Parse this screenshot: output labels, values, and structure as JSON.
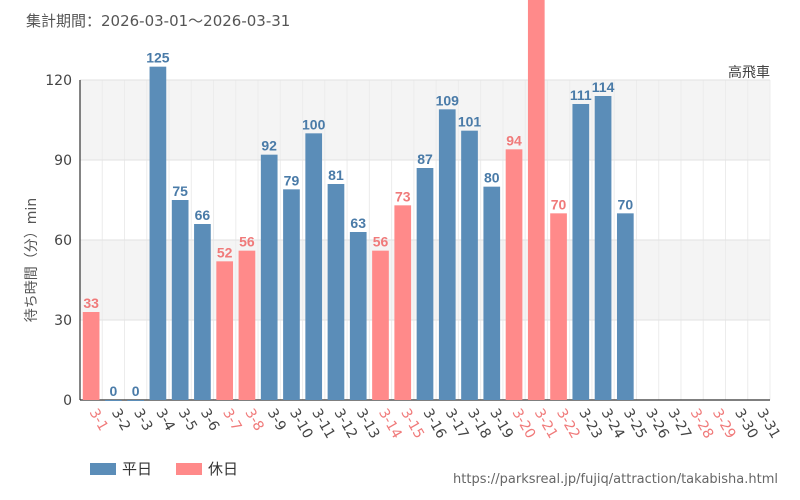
{
  "period_label": "集計期間：2026-03-01～2026-03-31",
  "attraction_name": "高飛車",
  "source_url": "https://parksreal.jp/fujiq/attraction/takabisha.html",
  "legend": {
    "weekday": "平日",
    "holiday": "休日"
  },
  "colors": {
    "weekday": "#5b8db8",
    "holiday": "#ff8a8a",
    "weekday_text": "#4a7ba8",
    "holiday_text": "#f07a7a"
  },
  "chart_data": {
    "type": "bar",
    "title": "",
    "ylabel": "待ち時間（分）min",
    "xlabel": "",
    "ylim": [
      0,
      120
    ],
    "yticks": [
      0,
      30,
      60,
      90,
      120
    ],
    "categories": [
      "3-1",
      "3-2",
      "3-3",
      "3-4",
      "3-5",
      "3-6",
      "3-7",
      "3-8",
      "3-9",
      "3-10",
      "3-11",
      "3-12",
      "3-13",
      "3-14",
      "3-15",
      "3-16",
      "3-17",
      "3-18",
      "3-19",
      "3-20",
      "3-21",
      "3-22",
      "3-23",
      "3-24",
      "3-25",
      "3-26",
      "3-27",
      "3-28",
      "3-29",
      "3-30",
      "3-31"
    ],
    "values": [
      33,
      0,
      0,
      125,
      75,
      66,
      52,
      56,
      92,
      79,
      100,
      81,
      63,
      56,
      73,
      87,
      109,
      101,
      80,
      94,
      null,
      70,
      111,
      114,
      70,
      null,
      null,
      null,
      null,
      null,
      null
    ],
    "labels": [
      "33",
      "0",
      "0",
      "125",
      "75",
      "66",
      "52",
      "56",
      "92",
      "79",
      "100",
      "81",
      "63",
      "56",
      "73",
      "87",
      "109",
      "101",
      "80",
      "94",
      "",
      "70",
      "111",
      "114",
      "70",
      "",
      "",
      "",
      "",
      "",
      ""
    ],
    "day_type": [
      "holiday",
      "weekday",
      "weekday",
      "weekday",
      "weekday",
      "weekday",
      "holiday",
      "holiday",
      "weekday",
      "weekday",
      "weekday",
      "weekday",
      "weekday",
      "holiday",
      "holiday",
      "weekday",
      "weekday",
      "weekday",
      "weekday",
      "holiday",
      "holiday",
      "holiday",
      "weekday",
      "weekday",
      "weekday",
      "weekday",
      "weekday",
      "holiday",
      "holiday",
      "weekday",
      "weekday"
    ],
    "offscale_bars": [
      "3-21"
    ],
    "legend_position": "bottom-left",
    "grid": true
  }
}
